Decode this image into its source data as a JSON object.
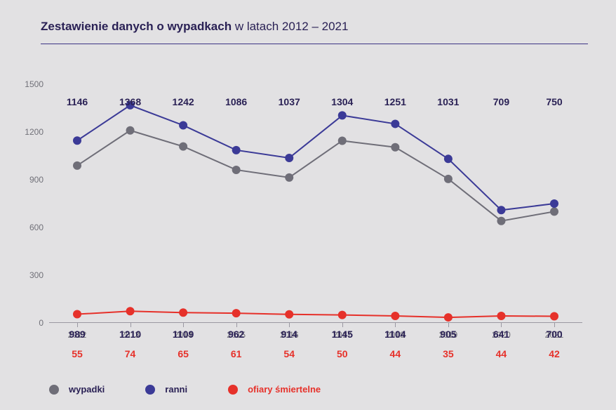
{
  "title_bold": "Zestawienie danych o wypadkach",
  "title_rest": " w latach 2012 – 2021",
  "chart": {
    "type": "line",
    "background_color": "#e2e1e3",
    "title_color": "#2a2155",
    "rule_color": "#3d3484",
    "axis_color": "#9a98a2",
    "tick_label_color": "#707078",
    "categories": [
      "2012",
      "2013",
      "2014",
      "2015",
      "2016",
      "2017",
      "2018",
      "2019",
      "2020",
      "2021"
    ],
    "ylim": [
      0,
      1500
    ],
    "ytick_step": 300,
    "yticks": [
      0,
      300,
      600,
      900,
      1200,
      1500
    ],
    "marker_radius": 6,
    "line_width": 2,
    "label_fontsize": 14,
    "tick_fontsize": 12,
    "series": [
      {
        "key": "wypadki",
        "label": "wypadki",
        "color": "#6f6e78",
        "label_color": "#2a2155",
        "values": [
          989,
          1210,
          1109,
          962,
          914,
          1145,
          1104,
          905,
          641,
          700
        ],
        "value_label_y": 356
      },
      {
        "key": "ranni",
        "label": "ranni",
        "color": "#3b3a97",
        "label_color": "#2a2155",
        "values": [
          1146,
          1368,
          1242,
          1086,
          1037,
          1304,
          1251,
          1031,
          709,
          750
        ],
        "value_label_y": 25
      },
      {
        "key": "ofiary",
        "label": "ofiary śmiertelne",
        "color": "#e6312a",
        "label_color": "#e6312a",
        "values": [
          55,
          74,
          65,
          61,
          54,
          50,
          44,
          35,
          44,
          42
        ],
        "value_label_y": 384
      }
    ],
    "legend_order": [
      "wypadki",
      "ranni",
      "ofiary"
    ]
  }
}
